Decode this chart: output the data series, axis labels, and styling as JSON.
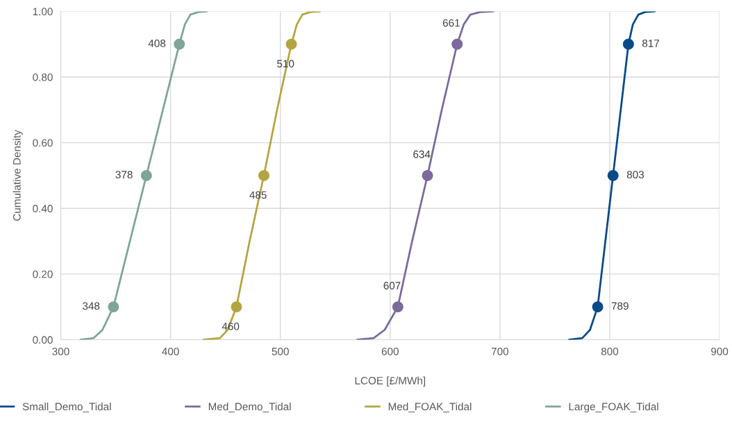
{
  "chart_data": {
    "type": "line",
    "xlabel": "LCOE [£/MWh]",
    "ylabel": "Cumulative Density",
    "xlim": [
      300,
      900
    ],
    "xticks": [
      300,
      400,
      500,
      600,
      700,
      800,
      900
    ],
    "ylim": [
      0,
      1
    ],
    "yticks": [
      {
        "value": 0,
        "label": "0.00"
      },
      {
        "value": 0.2,
        "label": "0.20"
      },
      {
        "value": 0.4,
        "label": "0.40"
      },
      {
        "value": 0.6,
        "label": "0.60"
      },
      {
        "value": 0.8,
        "label": "0.80"
      },
      {
        "value": 1,
        "label": "1.00"
      }
    ],
    "grid": true,
    "legend": "bottom",
    "marker": "none",
    "series": [
      {
        "name": "Small_Demo_Tidal",
        "color": "#0a4a87",
        "x": [
          763,
          775,
          782,
          789,
          796,
          803,
          810,
          817,
          821,
          826,
          832,
          841
        ],
        "values": [
          0,
          0.005,
          0.03,
          0.1,
          0.3,
          0.5,
          0.7,
          0.9,
          0.96,
          0.99,
          0.998,
          1
        ]
      },
      {
        "name": "Med_Demo_Tidal",
        "color": "#7b6a9b",
        "x": [
          570,
          585,
          595,
          607,
          620,
          634,
          647,
          661,
          667,
          673,
          682,
          694
        ],
        "values": [
          0,
          0.005,
          0.03,
          0.1,
          0.3,
          0.5,
          0.7,
          0.9,
          0.96,
          0.99,
          0.998,
          1
        ]
      },
      {
        "name": "Med_FOAK_Tidal",
        "color": "#b3a642",
        "x": [
          430,
          445,
          452,
          460,
          472,
          485,
          497,
          510,
          515,
          520,
          527,
          536
        ],
        "values": [
          0,
          0.005,
          0.03,
          0.1,
          0.3,
          0.5,
          0.7,
          0.9,
          0.96,
          0.99,
          0.998,
          1
        ]
      },
      {
        "name": "Large_FOAK_Tidal",
        "color": "#7fa596",
        "x": [
          318,
          330,
          338,
          348,
          363,
          378,
          393,
          408,
          413,
          418,
          425,
          433
        ],
        "values": [
          0,
          0.005,
          0.03,
          0.1,
          0.3,
          0.5,
          0.7,
          0.9,
          0.96,
          0.99,
          0.998,
          1
        ]
      },
      {
        "type": "scatter",
        "marker": "circle",
        "color": "#0a4a87",
        "x": [
          789,
          803,
          817
        ],
        "values": [
          0.1,
          0.5,
          0.9
        ]
      },
      {
        "type": "scatter",
        "marker": "circle",
        "color": "#7b6a9b",
        "x": [
          607,
          634,
          661
        ],
        "values": [
          0.1,
          0.5,
          0.9
        ]
      },
      {
        "type": "scatter",
        "marker": "circle",
        "color": "#b3a642",
        "x": [
          460,
          485,
          510
        ],
        "values": [
          0.1,
          0.5,
          0.9
        ]
      },
      {
        "type": "scatter",
        "marker": "circle",
        "color": "#7fa596",
        "x": [
          348,
          378,
          408
        ],
        "values": [
          0.1,
          0.5,
          0.9
        ]
      }
    ],
    "annotations": [
      {
        "text": "789",
        "x": 789,
        "y": 0.1
      },
      {
        "text": "803",
        "x": 803,
        "y": 0.5
      },
      {
        "text": "817",
        "x": 817,
        "y": 0.9
      },
      {
        "text": "607",
        "x": 607,
        "y": 0.1
      },
      {
        "text": "634",
        "x": 634,
        "y": 0.5
      },
      {
        "text": "661",
        "x": 661,
        "y": 0.9
      },
      {
        "text": "460",
        "x": 460,
        "y": 0.1
      },
      {
        "text": "485",
        "x": 485,
        "y": 0.5
      },
      {
        "text": "510",
        "x": 510,
        "y": 0.9
      },
      {
        "text": "348",
        "x": 348,
        "y": 0.1
      },
      {
        "text": "378",
        "x": 378,
        "y": 0.5
      },
      {
        "text": "408",
        "x": 408,
        "y": 0.9
      }
    ]
  }
}
